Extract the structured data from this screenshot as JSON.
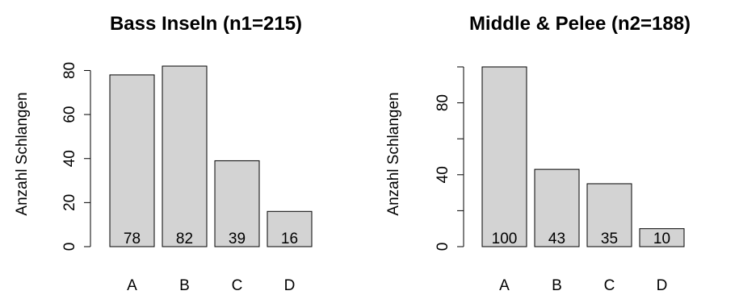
{
  "chart_data": [
    {
      "type": "bar",
      "title": "Bass Inseln (n1=215)",
      "ylabel": "Anzahl Schlangen",
      "xlabel": "",
      "categories": [
        "A",
        "B",
        "C",
        "D"
      ],
      "values": [
        78,
        82,
        39,
        16
      ],
      "data_labels": [
        "78",
        "82",
        "39",
        "16"
      ],
      "ylim": [
        0,
        82
      ],
      "yticks": [
        0,
        20,
        40,
        60,
        80
      ],
      "yticks_labeled": [
        "0",
        "20",
        "40",
        "60",
        "80"
      ],
      "bar_color": "#d3d3d3"
    },
    {
      "type": "bar",
      "title": "Middle & Pelee (n2=188)",
      "ylabel": "Anzahl Schlangen",
      "xlabel": "",
      "categories": [
        "A",
        "B",
        "C",
        "D"
      ],
      "values": [
        100,
        43,
        35,
        10
      ],
      "data_labels": [
        "100",
        "43",
        "35",
        "10"
      ],
      "ylim": [
        0,
        100
      ],
      "yticks": [
        0,
        20,
        40,
        60,
        80,
        100
      ],
      "yticks_labeled": [
        "0",
        "40",
        "80"
      ],
      "bar_color": "#d3d3d3"
    }
  ]
}
